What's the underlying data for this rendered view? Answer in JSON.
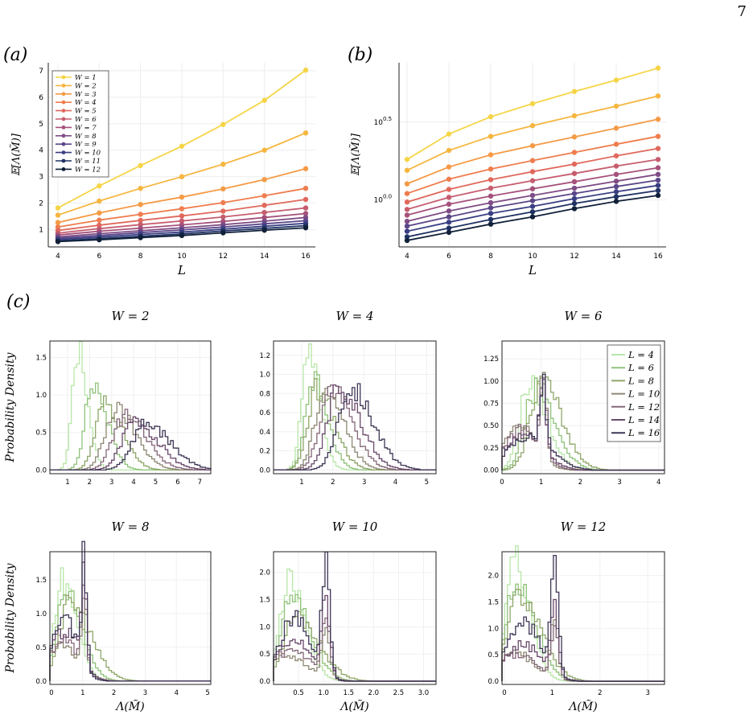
{
  "page_number": "7",
  "panel_labels": {
    "a": "(a)",
    "b": "(b)",
    "c": "(c)"
  },
  "colors": [
    "#f5d547",
    "#f6b63f",
    "#f59a45",
    "#ef7d4e",
    "#e0685c",
    "#c65d6f",
    "#a5517b",
    "#7f4c85",
    "#5a4688",
    "#3a3f83",
    "#1f3263",
    "#102038"
  ],
  "hist_colors": [
    "#b8e6a8",
    "#8fc27a",
    "#8fa76a",
    "#8e8874",
    "#86697a",
    "#6a4a6c",
    "#3f3656"
  ],
  "chart_data": [
    {
      "panel": "a",
      "type": "line",
      "x": [
        4,
        6,
        8,
        10,
        12,
        14,
        16
      ],
      "xlabel": "L",
      "ylabel": "𝔼[Λ(M̃)]",
      "ylim": [
        0.35,
        7.3
      ],
      "yticks": [
        "1",
        "2",
        "3",
        "4",
        "5",
        "6",
        "7"
      ],
      "xticks": [
        "4",
        "6",
        "8",
        "10",
        "12",
        "14",
        "16"
      ],
      "legend_position": "top-left",
      "series": [
        {
          "name": "W = 1",
          "values": [
            1.82,
            2.65,
            3.42,
            4.15,
            4.97,
            5.88,
            7.02
          ]
        },
        {
          "name": "W = 2",
          "values": [
            1.55,
            2.08,
            2.56,
            3.0,
            3.47,
            4.0,
            4.65
          ]
        },
        {
          "name": "W = 3",
          "values": [
            1.27,
            1.63,
            1.95,
            2.23,
            2.54,
            2.89,
            3.3
          ]
        },
        {
          "name": "W = 4",
          "values": [
            1.1,
            1.36,
            1.58,
            1.79,
            2.02,
            2.28,
            2.56
          ]
        },
        {
          "name": "W = 5",
          "values": [
            0.97,
            1.17,
            1.35,
            1.52,
            1.7,
            1.92,
            2.14
          ]
        },
        {
          "name": "W = 6",
          "values": [
            0.87,
            1.04,
            1.19,
            1.33,
            1.48,
            1.65,
            1.82
          ]
        },
        {
          "name": "W = 7",
          "values": [
            0.8,
            0.94,
            1.06,
            1.18,
            1.31,
            1.46,
            1.61
          ]
        },
        {
          "name": "W = 8",
          "values": [
            0.73,
            0.85,
            0.96,
            1.07,
            1.19,
            1.32,
            1.46
          ]
        },
        {
          "name": "W = 9",
          "values": [
            0.68,
            0.78,
            0.89,
            0.99,
            1.1,
            1.22,
            1.34
          ]
        },
        {
          "name": "W = 10",
          "values": [
            0.63,
            0.72,
            0.82,
            0.91,
            1.02,
            1.13,
            1.24
          ]
        },
        {
          "name": "W = 11",
          "values": [
            0.58,
            0.66,
            0.75,
            0.84,
            0.95,
            1.05,
            1.15
          ]
        },
        {
          "name": "W = 12",
          "values": [
            0.55,
            0.62,
            0.7,
            0.78,
            0.88,
            0.98,
            1.07
          ]
        }
      ]
    },
    {
      "panel": "b",
      "type": "line",
      "yscale": "log",
      "x": [
        4,
        6,
        8,
        10,
        12,
        14,
        16
      ],
      "xlabel": "L",
      "ylabel": "𝔼[Λ(M̃)]",
      "yticks": [
        {
          "label": "10",
          "exp": "0.0",
          "value": 1.0
        },
        {
          "label": "10",
          "exp": "0.5",
          "value": 3.162
        }
      ],
      "xticks": [
        "4",
        "6",
        "8",
        "10",
        "12",
        "14",
        "16"
      ],
      "ylim": [
        0.5,
        7.6
      ]
    },
    {
      "panel": "c",
      "type": "histogram",
      "xlabel": "Λ(M̃)",
      "ylabel": "Probability Density",
      "legend": [
        "L = 4",
        "L = 6",
        "L = 8",
        "L = 10",
        "L = 12",
        "L = 14",
        "L = 16"
      ],
      "legend_position": "top-right of W = 6 panel",
      "subplots": [
        {
          "title": "W = 2",
          "xlim": [
            0.2,
            7.5
          ],
          "ylim": [
            -0.05,
            1.72
          ],
          "xticks": [
            "1",
            "2",
            "3",
            "4",
            "5",
            "6",
            "7"
          ],
          "yticks": [
            "0.0",
            "0.5",
            "1.0",
            "1.5"
          ],
          "modes": [
            [
              1.45,
              1.6,
              0.35
            ],
            [
              2.15,
              1.13,
              0.5
            ],
            [
              2.7,
              0.9,
              0.6
            ],
            [
              3.2,
              0.8,
              0.7
            ],
            [
              3.6,
              0.72,
              0.75
            ],
            [
              4.05,
              0.65,
              0.8
            ],
            [
              4.55,
              0.62,
              0.85
            ]
          ]
        },
        {
          "title": "W = 4",
          "xlim": [
            0.1,
            5.3
          ],
          "ylim": [
            -0.04,
            1.35
          ],
          "xticks": [
            "1",
            "2",
            "3",
            "4",
            "5"
          ],
          "yticks": [
            "0.0",
            "0.2",
            "0.4",
            "0.6",
            "0.8",
            "1.0",
            "1.2"
          ],
          "modes": [
            [
              1.2,
              1.3,
              0.28
            ],
            [
              1.35,
              0.95,
              0.35
            ],
            [
              1.5,
              0.85,
              0.42
            ],
            [
              1.75,
              0.85,
              0.45
            ],
            [
              1.95,
              0.85,
              0.5
            ],
            [
              2.2,
              0.88,
              0.52
            ],
            [
              2.55,
              0.85,
              0.55
            ]
          ]
        },
        {
          "title": "W = 6",
          "xlim": [
            0.0,
            4.15
          ],
          "ylim": [
            -0.04,
            1.45
          ],
          "xticks": [
            "0",
            "1",
            "2",
            "3",
            "4"
          ],
          "yticks": [
            "0.00",
            "0.25",
            "0.50",
            "0.75",
            "1.00",
            "1.25"
          ],
          "modes": [
            [
              0.7,
              0.97,
              0.35
            ],
            [
              0.85,
              0.9,
              0.38
            ],
            [
              1.0,
              1.0,
              0.4
            ],
            [
              1.1,
              1.05,
              0.42
            ],
            [
              1.25,
              0.9,
              0.45
            ],
            [
              1.4,
              0.8,
              0.5
            ],
            [
              1.75,
              0.75,
              0.55
            ]
          ]
        },
        {
          "title": "W = 8",
          "xlim": [
            -0.05,
            5.1
          ],
          "ylim": [
            -0.05,
            1.92
          ],
          "xticks": [
            "0",
            "1",
            "2",
            "3",
            "4",
            "5"
          ],
          "yticks": [
            "0.0",
            "0.5",
            "1.0",
            "1.5"
          ],
          "modes": [
            [
              0.35,
              1.5,
              0.35
            ],
            [
              0.45,
              1.3,
              0.4
            ],
            [
              0.6,
              1.15,
              0.5
            ],
            [
              0.8,
              1.05,
              0.55
            ],
            [
              1.0,
              1.2,
              0.5
            ],
            [
              1.1,
              1.5,
              0.45
            ],
            [
              1.05,
              1.85,
              0.4
            ]
          ]
        },
        {
          "title": "W = 10",
          "xlim": [
            0.0,
            3.25
          ],
          "ylim": [
            -0.06,
            2.38
          ],
          "xticks": [
            "0.5",
            "1.0",
            "1.5",
            "2.0",
            "2.5",
            "3.0"
          ],
          "yticks": [
            "0.0",
            "0.5",
            "1.0",
            "1.5",
            "2.0"
          ],
          "modes": [
            [
              0.3,
              1.8,
              0.25
            ],
            [
              0.35,
              1.5,
              0.3
            ],
            [
              0.45,
              1.2,
              0.35
            ],
            [
              0.6,
              1.0,
              0.4
            ],
            [
              0.9,
              1.1,
              0.4
            ],
            [
              1.0,
              1.5,
              0.35
            ],
            [
              1.05,
              2.3,
              0.3
            ]
          ]
        },
        {
          "title": "W = 12",
          "xlim": [
            -0.05,
            3.35
          ],
          "ylim": [
            -0.06,
            2.45
          ],
          "xticks": [
            "0",
            "1",
            "2",
            "3"
          ],
          "yticks": [
            "0.0",
            "0.5",
            "1.0",
            "1.5",
            "2.0"
          ],
          "modes": [
            [
              0.2,
              2.3,
              0.25
            ],
            [
              0.25,
              1.9,
              0.3
            ],
            [
              0.3,
              1.6,
              0.35
            ],
            [
              0.4,
              1.2,
              0.4
            ],
            [
              0.6,
              1.0,
              0.45
            ],
            [
              1.0,
              1.4,
              0.4
            ],
            [
              1.02,
              2.2,
              0.35
            ]
          ]
        }
      ]
    }
  ]
}
